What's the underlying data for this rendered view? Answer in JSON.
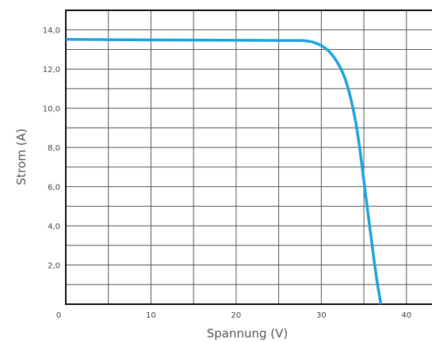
{
  "chart_data": {
    "type": "line",
    "title": "",
    "xlabel": "Spannung (V)",
    "ylabel": "Strom (A)",
    "xlim": [
      0,
      43
    ],
    "ylim": [
      0,
      15
    ],
    "grid": true,
    "legend": "none",
    "x_major_ticks": [
      0,
      10,
      20,
      30,
      40
    ],
    "x_tick_labels": [
      "0",
      "10",
      "20",
      "30",
      "40"
    ],
    "x_grid_step": 5,
    "y_major_ticks": [
      2,
      4,
      6,
      8,
      10,
      12,
      14
    ],
    "y_tick_labels": [
      "2,0",
      "4,0",
      "6,0",
      "8,0",
      "10,0",
      "12,0",
      "14,0"
    ],
    "y_grid_step": 1,
    "series": [
      {
        "color": "#1aa3dd",
        "x": [
          0,
          5,
          10,
          15,
          20,
          25,
          27,
          28,
          29,
          30,
          30.8,
          31.5,
          32.2,
          32.8,
          33.4,
          34.0,
          34.5,
          35.0,
          35.5,
          36.0,
          36.5,
          37.0
        ],
        "y": [
          13.52,
          13.5,
          13.49,
          13.48,
          13.47,
          13.46,
          13.46,
          13.45,
          13.38,
          13.2,
          12.95,
          12.6,
          12.1,
          11.5,
          10.6,
          9.4,
          8.0,
          6.3,
          4.6,
          2.9,
          1.3,
          0
        ]
      }
    ]
  }
}
